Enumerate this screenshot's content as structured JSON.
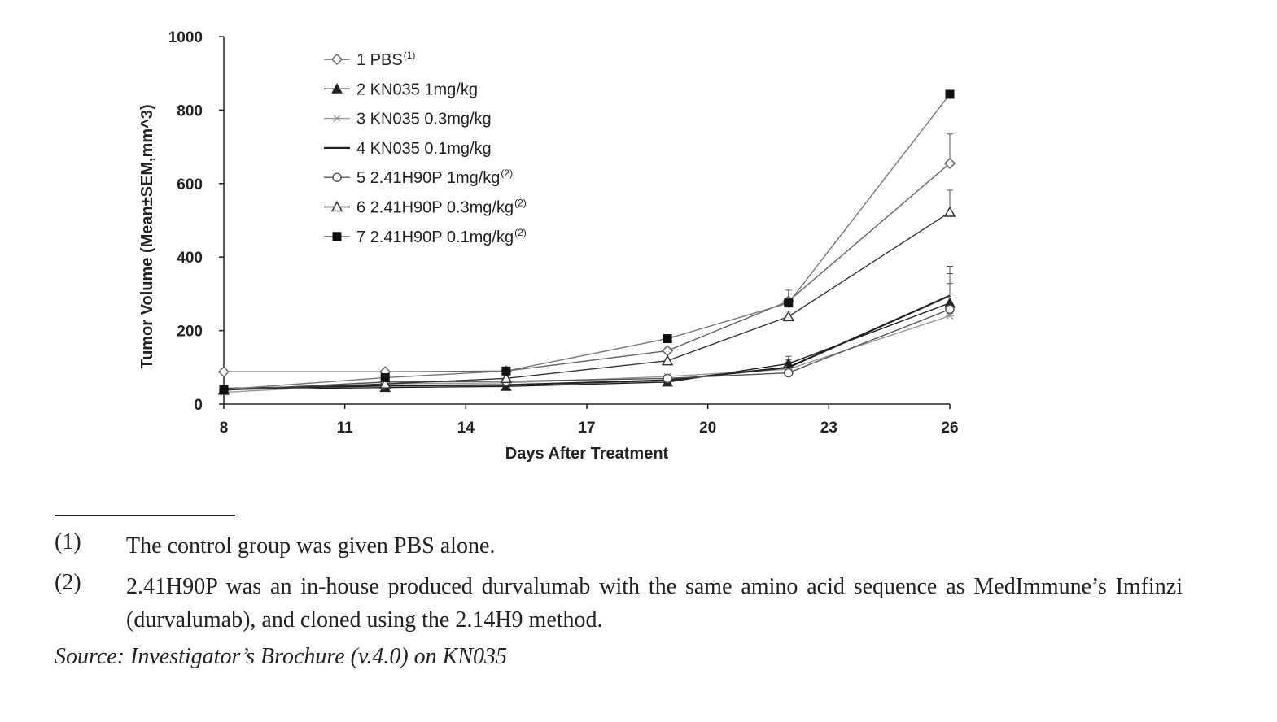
{
  "chart_data": {
    "type": "line",
    "xlabel": "Days After Treatment",
    "ylabel": "Tumor Volume (Mean±SEM,mm^3)",
    "xlim": [
      8,
      26
    ],
    "ylim": [
      0,
      1000
    ],
    "x_ticks": [
      8,
      11,
      14,
      17,
      20,
      23,
      26
    ],
    "y_ticks": [
      0,
      200,
      400,
      600,
      800,
      1000
    ],
    "legend_position": "top-left",
    "x": [
      8,
      12,
      15,
      19,
      22,
      26
    ],
    "series": [
      {
        "name": "1 PBS",
        "note": "(1)",
        "marker": "diamond-open",
        "color": "#666666",
        "values": [
          88,
          88,
          90,
          145,
          280,
          655
        ],
        "error": [
          0,
          0,
          0,
          0,
          30,
          80
        ]
      },
      {
        "name": "2 KN035 1mg/kg",
        "note": "",
        "marker": "triangle-filled",
        "color": "#222222",
        "values": [
          40,
          45,
          48,
          60,
          110,
          275
        ],
        "error": [
          0,
          0,
          0,
          0,
          20,
          80
        ]
      },
      {
        "name": "3 KN035 0.3mg/kg",
        "note": "",
        "marker": "star",
        "color": "#999999",
        "values": [
          32,
          55,
          58,
          75,
          95,
          240
        ],
        "error": [
          0,
          0,
          0,
          0,
          20,
          60
        ]
      },
      {
        "name": "4 KN035 0.1mg/kg",
        "note": "",
        "marker": "none",
        "color": "#222222",
        "values": [
          42,
          50,
          52,
          65,
          100,
          295
        ],
        "error": [
          0,
          0,
          0,
          0,
          20,
          80
        ]
      },
      {
        "name": "5 2.41H90P 1mg/kg",
        "note": "(2)",
        "marker": "circle-open",
        "color": "#555555",
        "values": [
          38,
          60,
          62,
          70,
          85,
          258
        ],
        "error": [
          0,
          0,
          0,
          0,
          20,
          70
        ]
      },
      {
        "name": "6 2.41H90P 0.3mg/kg",
        "note": "(2)",
        "marker": "triangle-open",
        "color": "#333333",
        "values": [
          38,
          55,
          70,
          118,
          238,
          522
        ],
        "error": [
          0,
          0,
          0,
          0,
          15,
          60
        ]
      },
      {
        "name": "7 2.41H90P 0.1mg/kg",
        "note": "(2)",
        "marker": "square-filled",
        "color": "#777777",
        "values": [
          40,
          72,
          90,
          178,
          275,
          843
        ],
        "error": [
          0,
          0,
          0,
          0,
          25,
          0
        ]
      }
    ]
  },
  "footnotes": [
    {
      "num": "(1)",
      "text": "The control group was given PBS alone."
    },
    {
      "num": "(2)",
      "text": "2.41H90P was an in-house produced durvalumab with the same amino acid sequence as MedImmune’s Imfinzi (durvalumab), and cloned using the 2.14H9 method."
    }
  ],
  "source": "Source: Investigator’s Brochure (v.4.0) on KN035"
}
